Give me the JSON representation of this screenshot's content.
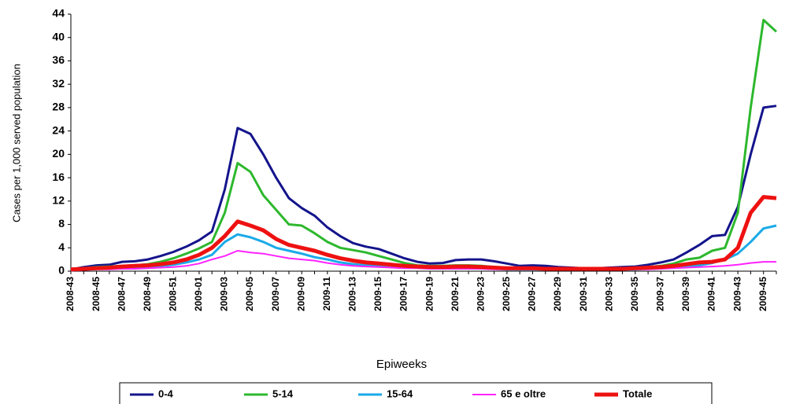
{
  "chart_data": {
    "type": "line",
    "y_label": "Cases per 1,000 served population",
    "x_label": "Epiweeks",
    "categories": [
      "2008-43",
      null,
      "2008-45",
      null,
      "2008-47",
      null,
      "2008-49",
      null,
      "2008-51",
      null,
      "2009-01",
      null,
      "2009-03",
      null,
      "2009-05",
      null,
      "2009-07",
      null,
      "2009-09",
      null,
      "2009-11",
      null,
      "2009-13",
      null,
      "2009-15",
      null,
      "2009-17",
      null,
      "2009-19",
      null,
      "2009-21",
      null,
      "2009-23",
      null,
      "2009-25",
      null,
      "2009-27",
      null,
      "2009-29",
      null,
      "2009-31",
      null,
      "2009-33",
      null,
      "2009-35",
      null,
      "2009-37",
      null,
      "2009-39",
      null,
      "2009-41",
      null,
      "2009-43",
      null,
      "2009-45",
      null
    ],
    "ylim": [
      0,
      44
    ],
    "yticks": [
      0,
      4,
      8,
      12,
      16,
      20,
      24,
      28,
      32,
      36,
      40,
      44
    ],
    "grid": false,
    "series": [
      {
        "name": "0-4",
        "color": "#14148c",
        "linewidth": 3,
        "values": [
          0.3,
          0.7,
          1.0,
          1.1,
          1.6,
          1.7,
          2.0,
          2.6,
          3.3,
          4.2,
          5.3,
          6.8,
          14,
          24.5,
          23.5,
          20,
          16,
          12.5,
          10.8,
          9.5,
          7.5,
          6,
          4.8,
          4.2,
          3.8,
          3,
          2.2,
          1.6,
          1.3,
          1.4,
          1.9,
          2,
          2,
          1.7,
          1.3,
          0.9,
          1,
          0.9,
          0.7,
          0.6,
          0.5,
          0.5,
          0.6,
          0.7,
          0.8,
          1.1,
          1.5,
          2,
          3.2,
          4.5,
          6,
          6.2,
          11,
          20,
          28,
          28.3
        ]
      },
      {
        "name": "5-14",
        "color": "#2db82d",
        "linewidth": 3,
        "values": [
          0.3,
          0.5,
          0.7,
          0.8,
          0.9,
          1,
          1.2,
          1.6,
          2.2,
          3,
          3.9,
          5,
          10,
          18.5,
          17,
          13,
          10.5,
          8,
          7.8,
          6.5,
          5,
          4,
          3.6,
          3.2,
          2.6,
          2,
          1.4,
          1,
          0.9,
          0.9,
          1,
          1,
          0.9,
          0.7,
          0.5,
          0.5,
          0.5,
          0.5,
          0.5,
          0.5,
          0.4,
          0.4,
          0.4,
          0.5,
          0.6,
          0.7,
          0.9,
          1.3,
          2,
          2.3,
          3.5,
          4,
          10,
          28,
          43,
          41
        ]
      },
      {
        "name": "15-64",
        "color": "#1aaae8",
        "linewidth": 3,
        "values": [
          0.2,
          0.3,
          0.4,
          0.5,
          0.6,
          0.6,
          0.7,
          0.9,
          1.1,
          1.5,
          2,
          2.8,
          5,
          6.3,
          5.8,
          5,
          4,
          3.5,
          3,
          2.4,
          2,
          1.5,
          1.2,
          1,
          0.9,
          0.8,
          0.7,
          0.6,
          0.5,
          0.5,
          0.5,
          0.5,
          0.5,
          0.4,
          0.3,
          0.3,
          0.3,
          0.3,
          0.3,
          0.3,
          0.3,
          0.3,
          0.3,
          0.3,
          0.3,
          0.4,
          0.5,
          0.6,
          0.8,
          1,
          1.4,
          2,
          3,
          5,
          7.3,
          7.8
        ]
      },
      {
        "name": "65 e oltre",
        "color": "#ff22ff",
        "linewidth": 2,
        "values": [
          0.1,
          0.2,
          0.3,
          0.3,
          0.4,
          0.4,
          0.5,
          0.6,
          0.7,
          0.9,
          1.3,
          2,
          2.6,
          3.5,
          3.2,
          3,
          2.6,
          2.2,
          2,
          1.8,
          1.4,
          1.1,
          0.9,
          0.8,
          0.7,
          0.6,
          0.5,
          0.5,
          0.4,
          0.4,
          0.4,
          0.4,
          0.4,
          0.3,
          0.3,
          0.3,
          0.3,
          0.3,
          0.3,
          0.3,
          0.3,
          0.3,
          0.3,
          0.3,
          0.3,
          0.3,
          0.4,
          0.5,
          0.6,
          0.7,
          0.8,
          0.9,
          1.1,
          1.4,
          1.6,
          1.6
        ]
      },
      {
        "name": "Totale",
        "color": "#ee1111",
        "linewidth": 5,
        "values": [
          0.3,
          0.4,
          0.5,
          0.6,
          0.8,
          0.9,
          1,
          1.2,
          1.5,
          2,
          2.8,
          4,
          6,
          8.5,
          7.8,
          7,
          5.5,
          4.5,
          4,
          3.5,
          2.8,
          2.2,
          1.8,
          1.5,
          1.3,
          1.1,
          0.9,
          0.8,
          0.7,
          0.7,
          0.8,
          0.8,
          0.7,
          0.6,
          0.5,
          0.5,
          0.5,
          0.4,
          0.4,
          0.4,
          0.4,
          0.4,
          0.4,
          0.4,
          0.5,
          0.6,
          0.7,
          0.9,
          1.2,
          1.5,
          1.6,
          2,
          4,
          10,
          12.7,
          12.5
        ]
      }
    ]
  }
}
